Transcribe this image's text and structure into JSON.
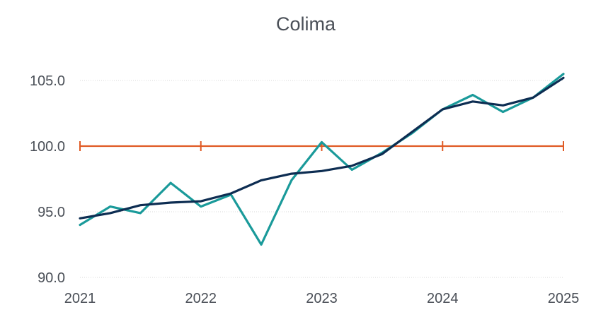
{
  "chart_data": {
    "type": "line",
    "title": "Colima",
    "xlabel": "",
    "ylabel": "",
    "xlim": [
      2021,
      2025
    ],
    "ylim": [
      90,
      105
    ],
    "y_ticks": [
      "90.0",
      "95.0",
      "100.0",
      "105.0"
    ],
    "y_tick_values": [
      90,
      95,
      100,
      105
    ],
    "x_ticks": [
      "2021",
      "2022",
      "2023",
      "2024",
      "2025"
    ],
    "x_tick_values": [
      2021,
      2022,
      2023,
      2024,
      2025
    ],
    "grid": true,
    "legend": "none",
    "series": [
      {
        "color": "#1a9a9a",
        "x": [
          2021,
          2021.25,
          2021.5,
          2021.75,
          2022,
          2022.25,
          2022.5,
          2022.75,
          2023,
          2023.25,
          2023.5,
          2023.75,
          2024,
          2024.25,
          2024.5,
          2024.75,
          2025
        ],
        "values": [
          94.0,
          95.4,
          94.9,
          97.2,
          95.4,
          96.3,
          92.5,
          97.4,
          100.3,
          98.2,
          99.5,
          101.0,
          102.8,
          103.9,
          102.6,
          103.7,
          105.5
        ]
      },
      {
        "color": "#0d2d52",
        "x": [
          2021,
          2021.25,
          2021.5,
          2021.75,
          2022,
          2022.25,
          2022.5,
          2022.75,
          2023,
          2023.25,
          2023.5,
          2023.75,
          2024,
          2024.25,
          2024.5,
          2024.75,
          2025
        ],
        "values": [
          94.5,
          94.9,
          95.5,
          95.7,
          95.8,
          96.4,
          97.4,
          97.9,
          98.1,
          98.5,
          99.4,
          101.1,
          102.8,
          103.4,
          103.1,
          103.7,
          105.2
        ]
      },
      {
        "color": "#e05a24",
        "x": [
          2021,
          2022,
          2023,
          2024,
          2025
        ],
        "values": [
          100.0,
          100.0,
          100.0,
          100.0,
          100.0
        ],
        "markers": "tick"
      }
    ]
  }
}
